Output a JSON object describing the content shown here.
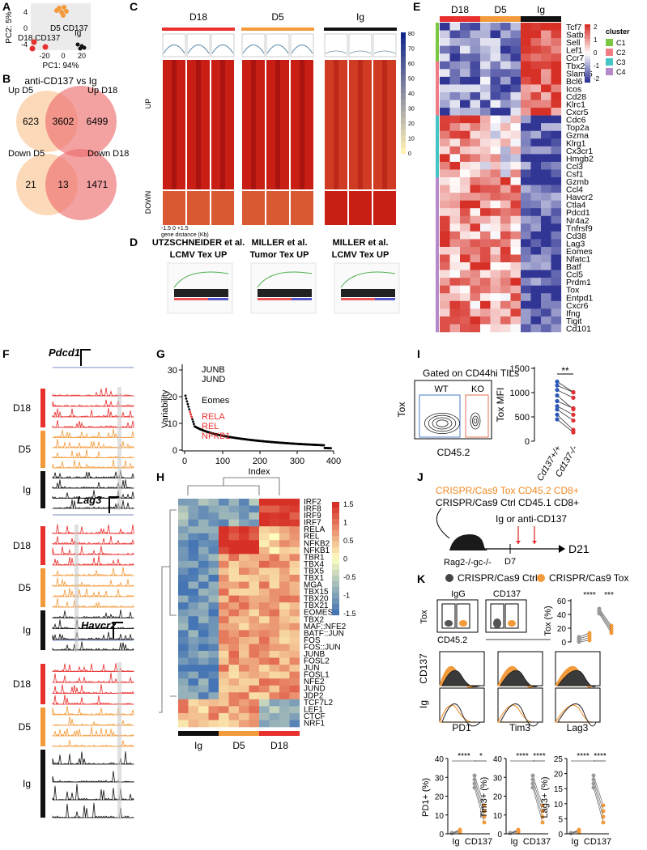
{
  "panels": {
    "a": {
      "label": "A",
      "y_axis": "PC2: 5%",
      "x_axis": "PC1: 94%",
      "yticks": [
        "4",
        "0",
        "-4"
      ],
      "xticks": [
        "-20",
        "0",
        "20"
      ],
      "groups": [
        "D5 CD137",
        "D18 CD137",
        "Ig"
      ]
    },
    "b": {
      "label": "B",
      "title": "anti-CD137 vs Ig",
      "up": {
        "left": "Up D5",
        "right": "Up D18",
        "counts": [
          "623",
          "3602",
          "6499"
        ]
      },
      "down": {
        "left": "Down D5",
        "right": "Down D18",
        "counts": [
          "21",
          "13",
          "1471"
        ]
      }
    },
    "c": {
      "label": "C",
      "groups": [
        "D18",
        "D5",
        "Ig"
      ],
      "rows": [
        "UP",
        "DOWN"
      ],
      "x_ticks": "-1.5 0 +1.5",
      "x_axis": "gene distance (Kb)",
      "scale": [
        "80",
        "70",
        "60",
        "50",
        "40",
        "30",
        "20",
        "10",
        "0"
      ]
    },
    "d": {
      "label": "D",
      "titles": [
        [
          "UTZSCHNEIDER et al.",
          "LCMV Tex UP"
        ],
        [
          "MILLER et al.",
          "Tumor Tex UP"
        ],
        [
          "MILLER et al.",
          "LCMV Tex UP"
        ]
      ]
    },
    "e": {
      "label": "E",
      "groups": [
        "D18",
        "D5",
        "Ig"
      ],
      "genes": [
        "Tcf7",
        "Satb1",
        "Sell",
        "Lef1",
        "Ccr7",
        "Tbx21",
        "Slamf6",
        "Bcl6",
        "Icos",
        "Cd28",
        "Klrc1",
        "Cxcr5",
        "Cdc6",
        "Top2a",
        "Gzma",
        "Klrg1",
        "Cx3cr1",
        "Hmgb2",
        "Ccl3",
        "Csf1",
        "Gzmb",
        "Ccl4",
        "Havcr2",
        "Ctla4",
        "Pdcd1",
        "Nr4a2",
        "Tnfrsf9",
        "Cd38",
        "Lag3",
        "Eomes",
        "Nfatc1",
        "Batf",
        "Ccl5",
        "Prdm1",
        "Tox",
        "Entpd1",
        "Cxcr6",
        "Ifng",
        "Tigit",
        "Cd101"
      ],
      "legend_title": "cluster",
      "clusters": [
        "C1",
        "C2",
        "C3",
        "C4"
      ],
      "scale": [
        "2",
        "1",
        "0",
        "-1",
        "-2"
      ]
    },
    "f": {
      "label": "F",
      "genes": [
        "Pdcd1",
        "Lag3",
        "Havcr2"
      ],
      "groups": [
        "D18",
        "D5",
        "Ig"
      ]
    },
    "g": {
      "label": "G",
      "y_axis": "Variability",
      "x_axis": "Index",
      "yticks": [
        "30",
        "20",
        "10",
        "0"
      ],
      "xticks": [
        "0",
        "100",
        "200",
        "300",
        "400"
      ],
      "highlights": [
        "JUNB",
        "JUND",
        "Eomes",
        "RELA",
        "REL",
        "NFKB1"
      ]
    },
    "h": {
      "label": "H",
      "factors": [
        "IRF2",
        "IRF8",
        "IRF9",
        "IRF7",
        "RELA",
        "REL",
        "NFKB2",
        "NFKB1",
        "TBR1",
        "TBX4",
        "TBX5",
        "TBX1",
        "MGA",
        "TBX15",
        "TBX20",
        "TBX21",
        "EOMES",
        "TBX2",
        "MAF::NFE2",
        "BATF::JUN",
        "FOS",
        "FOS::JUN",
        "JUNB",
        "FOSL2",
        "JUN",
        "FOSL1",
        "NFE2",
        "JUND",
        "JDP2",
        "TCF7L2",
        "LEF1",
        "CTCF",
        "NRF1"
      ],
      "scale": [
        "1.5",
        "1",
        "0.5",
        "0",
        "-0.5",
        "-1",
        "-1.5"
      ],
      "groups": [
        "Ig",
        "D5",
        "D18"
      ]
    },
    "i": {
      "label": "I",
      "gate": "Gated on CD44hi TILs",
      "populations": [
        "WT",
        "KO"
      ],
      "flow_y": "Tox",
      "flow_x": "CD45.2",
      "y_axis": "Tox MFI",
      "yticks": [
        "1500",
        "1000",
        "500",
        "0"
      ],
      "stars": "**",
      "x_labels": [
        "Cd137+/+",
        "Cd137-/-"
      ]
    },
    "j": {
      "label": "J",
      "cells": [
        "CRISPR/Cas9 Tox CD45.2 CD8+",
        "CRISPR/Cas9 Ctrl CD45.1 CD8+"
      ],
      "treatment": "Ig or anti-CD137",
      "host": "Rag2-/-gc-/-",
      "days": [
        "D7",
        "D21"
      ]
    },
    "k": {
      "label": "K",
      "legend": [
        "CRISPR/Cas9 Ctrl",
        "CRISPR/Cas9 Tox"
      ],
      "flow_titles": [
        "IgG",
        "CD137"
      ],
      "flow_y": "Tox",
      "flow_x": "CD45.2",
      "tox_plot": {
        "y_axis": "Tox (%)",
        "yticks": [
          "60",
          "40",
          "20",
          "0"
        ],
        "stars": [
          "****",
          "***"
        ]
      },
      "hist_rows": [
        "CD137",
        "Ig"
      ],
      "hist_cols": [
        "PD1",
        "Tim3",
        "Lag3"
      ],
      "summary": [
        {
          "y_axis": "PD1+ (%)",
          "yticks": [
            "40",
            "30",
            "20",
            "10",
            "0"
          ],
          "x_labels": [
            "Ig",
            "CD137"
          ],
          "stars": [
            "****",
            "*"
          ]
        },
        {
          "y_axis": "Tim3+ (%)",
          "yticks": [
            "40",
            "30",
            "20",
            "10",
            "0"
          ],
          "x_labels": [
            "Ig",
            "CD137"
          ],
          "stars": [
            "****",
            "****"
          ]
        },
        {
          "y_axis": "Lag3+ (%)",
          "yticks": [
            "25",
            "20",
            "15",
            "10",
            "5",
            "0"
          ],
          "x_labels": [
            "Ig",
            "CD137"
          ],
          "stars": [
            "****",
            "****"
          ]
        }
      ]
    }
  }
}
